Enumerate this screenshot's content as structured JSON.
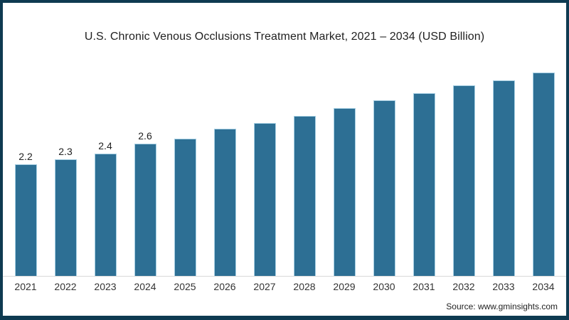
{
  "window": {
    "background": "#ffffff",
    "frame_color": "#0e3a51"
  },
  "chart_data": {
    "type": "bar",
    "title": "U.S. Chronic Venous Occlusions Treatment Market, 2021 – 2034 (USD Billion)",
    "categories": [
      "2021",
      "2022",
      "2023",
      "2024",
      "2025",
      "2026",
      "2027",
      "2028",
      "2029",
      "2030",
      "2031",
      "2032",
      "2033",
      "2034"
    ],
    "values": [
      2.2,
      2.3,
      2.4,
      2.6,
      2.7,
      2.9,
      3.0,
      3.15,
      3.3,
      3.45,
      3.6,
      3.75,
      3.85,
      4.0
    ],
    "data_labels": [
      "2.2",
      "2.3",
      "2.4",
      "2.6",
      "",
      "",
      "",
      "",
      "",
      "",
      "",
      "",
      "",
      ""
    ],
    "unit": "USD Billion",
    "bar_color": "#2d6f94",
    "bar_edge_color": "#a6cfe3",
    "axis_line_color": "#d9d9d9",
    "data_label_color": "#222222",
    "tick_label_color": "#333333",
    "ylim": [
      0,
      4.6
    ],
    "xlabel": "",
    "ylabel": "",
    "grid": false,
    "legend": "none",
    "y_axis_visible": false
  },
  "footer": {
    "source_label": "Source: www.gminsights.com"
  }
}
